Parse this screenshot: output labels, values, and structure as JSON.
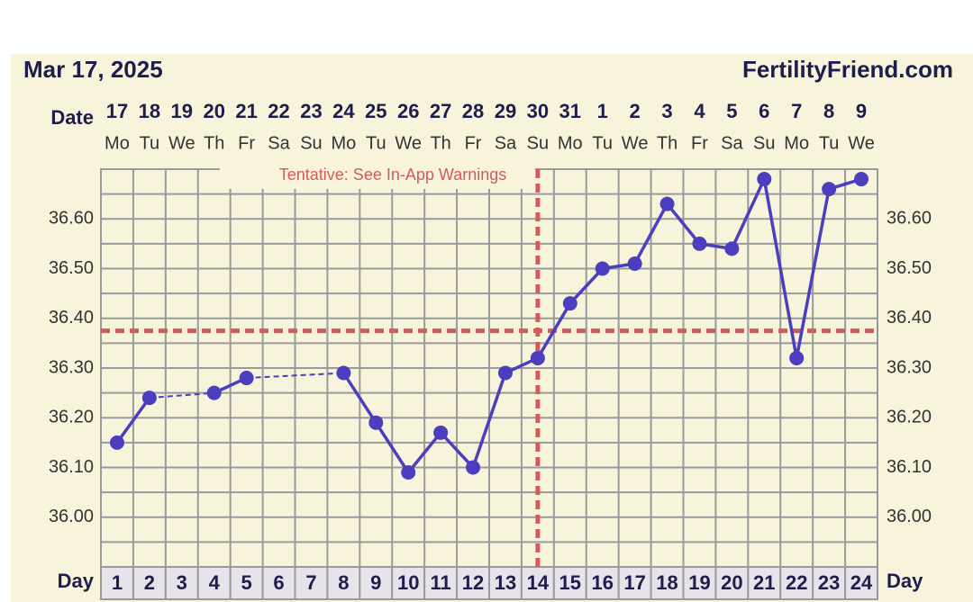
{
  "chart_data": {
    "type": "line",
    "title": "Mar 17, 2025",
    "site": "FertilityFriend.com",
    "date_label": "Date",
    "day_label": "Day",
    "categories": [
      "17",
      "18",
      "19",
      "20",
      "21",
      "22",
      "23",
      "24",
      "25",
      "26",
      "27",
      "28",
      "29",
      "30",
      "31",
      "1",
      "2",
      "3",
      "4",
      "5",
      "6",
      "7",
      "8",
      "9"
    ],
    "weekdays": [
      "Mo",
      "Tu",
      "We",
      "Th",
      "Fr",
      "Sa",
      "Su",
      "Mo",
      "Tu",
      "We",
      "Th",
      "Fr",
      "Sa",
      "Su",
      "Mo",
      "Tu",
      "We",
      "Th",
      "Fr",
      "Sa",
      "Su",
      "Mo",
      "Tu",
      "We"
    ],
    "days": [
      1,
      2,
      3,
      4,
      5,
      6,
      7,
      8,
      9,
      10,
      11,
      12,
      13,
      14,
      15,
      16,
      17,
      18,
      19,
      20,
      21,
      22,
      23,
      24
    ],
    "series": [
      {
        "name": "Temperature",
        "color": "#4b3ebf",
        "values": [
          36.15,
          36.24,
          null,
          36.25,
          36.28,
          null,
          null,
          36.29,
          36.19,
          36.09,
          36.17,
          36.1,
          36.29,
          36.32,
          36.43,
          36.5,
          36.51,
          36.63,
          36.55,
          36.54,
          36.68,
          36.32,
          36.66,
          36.68
        ]
      }
    ],
    "ylim": [
      35.9,
      36.7
    ],
    "yticks": [
      {
        "value": 36.0,
        "label": "36.00"
      },
      {
        "value": 36.1,
        "label": "36.10"
      },
      {
        "value": 36.2,
        "label": "36.20"
      },
      {
        "value": 36.3,
        "label": "36.30"
      },
      {
        "value": 36.4,
        "label": "36.40"
      },
      {
        "value": 36.5,
        "label": "36.50"
      },
      {
        "value": 36.6,
        "label": "36.60"
      }
    ],
    "minor_yticks": [
      35.95,
      36.05,
      36.15,
      36.25,
      36.35,
      36.45,
      36.55,
      36.65
    ],
    "grid": true,
    "coverline": 36.375,
    "ovulation_day": 14,
    "marker_color": "#d55a5a",
    "annotation": "Tentative: See In-App Warnings"
  }
}
